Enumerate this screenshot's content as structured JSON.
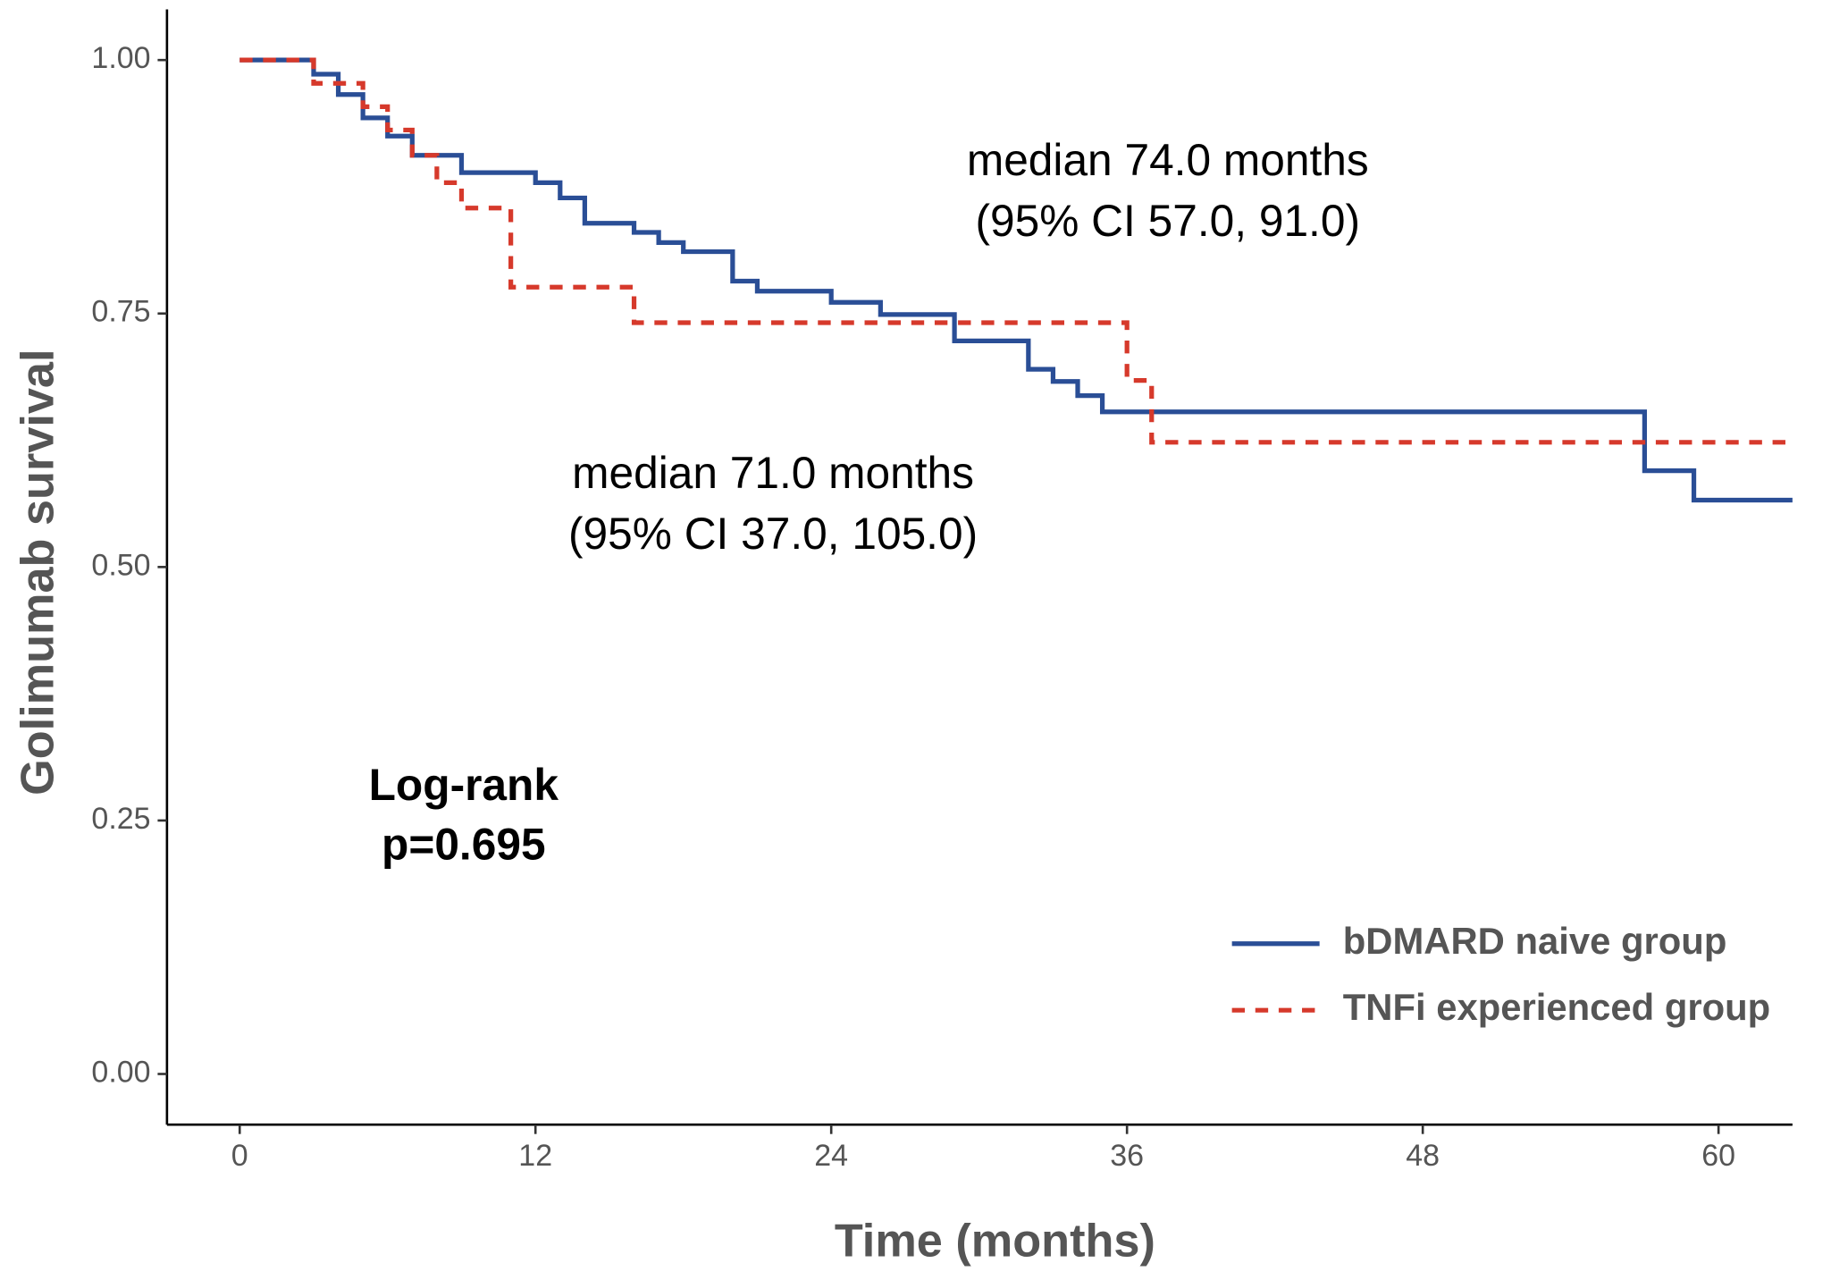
{
  "chart_data": {
    "type": "line",
    "step": "post",
    "x_label": "Time (months)",
    "y_label": "Golimumab survival",
    "xlim": [
      -2.95,
      63
    ],
    "ylim": [
      -0.05,
      1.05
    ],
    "xticks": [
      0,
      12,
      24,
      36,
      48,
      60
    ],
    "yticks": [
      {
        "value": 0,
        "label": "0.00"
      },
      {
        "value": 0.25,
        "label": "0.25"
      },
      {
        "value": 0.5,
        "label": "0.50"
      },
      {
        "value": 0.75,
        "label": "0.75"
      },
      {
        "value": 1,
        "label": "1.00"
      }
    ],
    "grid": false,
    "legend": "bottom-right",
    "series": [
      {
        "name": "bDMARD naive group",
        "color": "#2a4e96",
        "line_style": "solid",
        "x": [
          0,
          3,
          4,
          5,
          6,
          7,
          9,
          12,
          13,
          14,
          16,
          17,
          18,
          20,
          21,
          24,
          26,
          29,
          32,
          33,
          34,
          35,
          57,
          59,
          63
        ],
        "values": [
          1,
          0.986,
          0.966,
          0.943,
          0.925,
          0.906,
          0.889,
          0.879,
          0.864,
          0.839,
          0.83,
          0.82,
          0.811,
          0.782,
          0.772,
          0.761,
          0.749,
          0.723,
          0.695,
          0.683,
          0.669,
          0.653,
          0.595,
          0.566,
          0.566
        ]
      },
      {
        "name": "TNFi experienced group",
        "color": "#d6392b",
        "line_style": "dashed",
        "x": [
          0,
          3,
          5,
          6,
          7,
          8,
          9,
          11,
          16,
          36,
          37,
          63
        ],
        "values": [
          1,
          0.977,
          0.954,
          0.931,
          0.906,
          0.879,
          0.854,
          0.776,
          0.741,
          0.684,
          0.623,
          0.623
        ]
      }
    ],
    "annotations": [
      "median 74.0 months",
      "(95% CI 57.0, 91.0)",
      "median 71.0 months",
      "(95% CI 37.0, 105.0)",
      "Log-rank",
      "p=0.695"
    ]
  }
}
